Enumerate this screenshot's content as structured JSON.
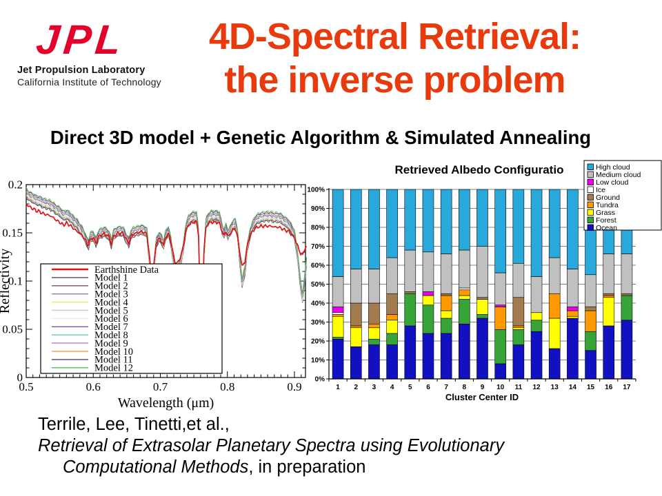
{
  "logo": {
    "acronym": "JPL",
    "name": "Jet Propulsion Laboratory",
    "institution": "California Institute of Technology",
    "brand_color": "#E4002B"
  },
  "title": {
    "line1": "4D-Spectral Retrieval:",
    "line2": "the inverse problem",
    "color": "#E93A0E"
  },
  "subtitle": "Direct 3D model + Genetic Algorithm & Simulated Annealing",
  "citation": {
    "line1": "Terrile, Lee, Tinetti,et al.,",
    "line2_italic": "Retrieval of Extrasolar Planetary Spectra using Evolutionary",
    "line3_italic": "Computational Methods",
    "line3_regular": ", in preparation"
  },
  "chart_data": [
    {
      "type": "line",
      "title": "",
      "xlabel": "Wavelength (μm)",
      "ylabel": "Reflectivity",
      "xlim": [
        0.5,
        0.918
      ],
      "ylim": [
        0,
        0.2
      ],
      "xticks": [
        0.5,
        0.6,
        0.7,
        0.8,
        0.9
      ],
      "yticks": [
        0,
        0.05,
        0.1,
        0.15,
        0.2
      ],
      "ytick_labels": [
        "0",
        "0.05",
        "0.1",
        "0.15",
        "0.2"
      ],
      "grid": false,
      "legend_position": "middle-left",
      "earthshine": {
        "name": "Earthshine Data",
        "color": "#E01010",
        "points": [
          [
            0.5,
            0.18
          ],
          [
            0.505,
            0.177
          ],
          [
            0.51,
            0.175
          ],
          [
            0.515,
            0.173
          ],
          [
            0.52,
            0.172
          ],
          [
            0.525,
            0.17
          ],
          [
            0.53,
            0.169
          ],
          [
            0.535,
            0.168
          ],
          [
            0.54,
            0.166
          ],
          [
            0.545,
            0.163
          ],
          [
            0.55,
            0.161
          ],
          [
            0.555,
            0.158
          ],
          [
            0.56,
            0.16
          ],
          [
            0.565,
            0.158
          ],
          [
            0.57,
            0.155
          ],
          [
            0.575,
            0.152
          ],
          [
            0.58,
            0.149
          ],
          [
            0.585,
            0.146
          ],
          [
            0.59,
            0.14
          ],
          [
            0.593,
            0.137
          ],
          [
            0.596,
            0.144
          ],
          [
            0.6,
            0.145
          ],
          [
            0.604,
            0.139
          ],
          [
            0.608,
            0.146
          ],
          [
            0.612,
            0.148
          ],
          [
            0.616,
            0.149
          ],
          [
            0.62,
            0.148
          ],
          [
            0.624,
            0.145
          ],
          [
            0.627,
            0.138
          ],
          [
            0.63,
            0.146
          ],
          [
            0.635,
            0.149
          ],
          [
            0.64,
            0.15
          ],
          [
            0.645,
            0.149
          ],
          [
            0.65,
            0.142
          ],
          [
            0.653,
            0.139
          ],
          [
            0.656,
            0.146
          ],
          [
            0.66,
            0.149
          ],
          [
            0.665,
            0.15
          ],
          [
            0.67,
            0.151
          ],
          [
            0.675,
            0.151
          ],
          [
            0.68,
            0.148
          ],
          [
            0.684,
            0.125
          ],
          [
            0.687,
            0.1
          ],
          [
            0.69,
            0.115
          ],
          [
            0.694,
            0.14
          ],
          [
            0.698,
            0.144
          ],
          [
            0.702,
            0.141
          ],
          [
            0.705,
            0.137
          ],
          [
            0.708,
            0.146
          ],
          [
            0.712,
            0.149
          ],
          [
            0.716,
            0.14
          ],
          [
            0.72,
            0.125
          ],
          [
            0.723,
            0.118
          ],
          [
            0.727,
            0.12
          ],
          [
            0.73,
            0.125
          ],
          [
            0.734,
            0.135
          ],
          [
            0.738,
            0.152
          ],
          [
            0.742,
            0.158
          ],
          [
            0.746,
            0.16
          ],
          [
            0.75,
            0.161
          ],
          [
            0.754,
            0.161
          ],
          [
            0.757,
            0.148
          ],
          [
            0.759,
            0.09
          ],
          [
            0.761,
            0.035
          ],
          [
            0.763,
            0.07
          ],
          [
            0.765,
            0.13
          ],
          [
            0.768,
            0.155
          ],
          [
            0.772,
            0.16
          ],
          [
            0.776,
            0.161
          ],
          [
            0.78,
            0.161
          ],
          [
            0.784,
            0.161
          ],
          [
            0.788,
            0.16
          ],
          [
            0.792,
            0.152
          ],
          [
            0.795,
            0.147
          ],
          [
            0.798,
            0.152
          ],
          [
            0.801,
            0.146
          ],
          [
            0.804,
            0.149
          ],
          [
            0.808,
            0.153
          ],
          [
            0.812,
            0.154
          ],
          [
            0.815,
            0.147
          ],
          [
            0.818,
            0.132
          ],
          [
            0.822,
            0.115
          ],
          [
            0.826,
            0.12
          ],
          [
            0.83,
            0.138
          ],
          [
            0.834,
            0.148
          ],
          [
            0.838,
            0.152
          ],
          [
            0.842,
            0.155
          ],
          [
            0.846,
            0.156
          ],
          [
            0.85,
            0.157
          ],
          [
            0.855,
            0.157
          ],
          [
            0.86,
            0.157
          ],
          [
            0.865,
            0.157
          ],
          [
            0.87,
            0.156
          ],
          [
            0.875,
            0.156
          ],
          [
            0.88,
            0.155
          ],
          [
            0.885,
            0.153
          ],
          [
            0.89,
            0.152
          ],
          [
            0.895,
            0.149
          ],
          [
            0.9,
            0.145
          ],
          [
            0.904,
            0.138
          ],
          [
            0.908,
            0.13
          ],
          [
            0.912,
            0.127
          ],
          [
            0.915,
            0.132
          ],
          [
            0.917,
            0.135
          ],
          [
            0.918,
            0.136
          ]
        ]
      },
      "models": {
        "names": [
          "Model 1",
          "Model 2",
          "Model 3",
          "Model 4",
          "Model 5",
          "Model 6",
          "Model 7",
          "Model 8",
          "Model 9",
          "Model 10",
          "Model 11",
          "Model 12"
        ],
        "colors": [
          "#4D4D4D",
          "#7A5252",
          "#7585B5",
          "#E8E870",
          "#CCCCCC",
          "#EFEADA",
          "#8055A5",
          "#62C9BE",
          "#BE78CF",
          "#F2A45C",
          "#3C4490",
          "#55BE55"
        ],
        "envelope_points": [
          [
            0.5,
            0.191
          ],
          [
            0.505,
            0.188
          ],
          [
            0.51,
            0.186
          ],
          [
            0.515,
            0.184
          ],
          [
            0.52,
            0.183
          ],
          [
            0.525,
            0.181
          ],
          [
            0.53,
            0.18
          ],
          [
            0.535,
            0.179
          ],
          [
            0.54,
            0.177
          ],
          [
            0.545,
            0.174
          ],
          [
            0.55,
            0.172
          ],
          [
            0.555,
            0.168
          ],
          [
            0.56,
            0.169
          ],
          [
            0.565,
            0.167
          ],
          [
            0.57,
            0.163
          ],
          [
            0.575,
            0.16
          ],
          [
            0.58,
            0.155
          ],
          [
            0.585,
            0.15
          ],
          [
            0.59,
            0.141
          ],
          [
            0.593,
            0.138
          ],
          [
            0.596,
            0.146
          ],
          [
            0.6,
            0.147
          ],
          [
            0.604,
            0.14
          ],
          [
            0.608,
            0.148
          ],
          [
            0.612,
            0.15
          ],
          [
            0.616,
            0.151
          ],
          [
            0.62,
            0.15
          ],
          [
            0.624,
            0.146
          ],
          [
            0.627,
            0.139
          ],
          [
            0.63,
            0.148
          ],
          [
            0.635,
            0.151
          ],
          [
            0.64,
            0.152
          ],
          [
            0.645,
            0.151
          ],
          [
            0.65,
            0.143
          ],
          [
            0.653,
            0.14
          ],
          [
            0.656,
            0.148
          ],
          [
            0.66,
            0.151
          ],
          [
            0.665,
            0.152
          ],
          [
            0.67,
            0.153
          ],
          [
            0.675,
            0.153
          ],
          [
            0.68,
            0.15
          ],
          [
            0.684,
            0.12
          ],
          [
            0.687,
            0.088
          ],
          [
            0.69,
            0.11
          ],
          [
            0.694,
            0.14
          ],
          [
            0.698,
            0.146
          ],
          [
            0.702,
            0.143
          ],
          [
            0.705,
            0.138
          ],
          [
            0.708,
            0.148
          ],
          [
            0.712,
            0.152
          ],
          [
            0.716,
            0.14
          ],
          [
            0.72,
            0.118
          ],
          [
            0.723,
            0.108
          ],
          [
            0.727,
            0.113
          ],
          [
            0.73,
            0.12
          ],
          [
            0.734,
            0.133
          ],
          [
            0.738,
            0.155
          ],
          [
            0.742,
            0.163
          ],
          [
            0.746,
            0.166
          ],
          [
            0.75,
            0.167
          ],
          [
            0.754,
            0.167
          ],
          [
            0.757,
            0.15
          ],
          [
            0.759,
            0.08
          ],
          [
            0.761,
            0.022
          ],
          [
            0.763,
            0.06
          ],
          [
            0.765,
            0.13
          ],
          [
            0.768,
            0.16
          ],
          [
            0.772,
            0.166
          ],
          [
            0.776,
            0.168
          ],
          [
            0.78,
            0.168
          ],
          [
            0.784,
            0.168
          ],
          [
            0.788,
            0.167
          ],
          [
            0.792,
            0.155
          ],
          [
            0.795,
            0.149
          ],
          [
            0.798,
            0.155
          ],
          [
            0.801,
            0.148
          ],
          [
            0.804,
            0.152
          ],
          [
            0.808,
            0.158
          ],
          [
            0.812,
            0.16
          ],
          [
            0.815,
            0.15
          ],
          [
            0.818,
            0.125
          ],
          [
            0.822,
            0.098
          ],
          [
            0.826,
            0.11
          ],
          [
            0.83,
            0.135
          ],
          [
            0.834,
            0.15
          ],
          [
            0.838,
            0.158
          ],
          [
            0.842,
            0.163
          ],
          [
            0.846,
            0.165
          ],
          [
            0.85,
            0.166
          ],
          [
            0.855,
            0.167
          ],
          [
            0.86,
            0.167
          ],
          [
            0.865,
            0.167
          ],
          [
            0.87,
            0.166
          ],
          [
            0.875,
            0.166
          ],
          [
            0.88,
            0.165
          ],
          [
            0.885,
            0.162
          ],
          [
            0.89,
            0.16
          ],
          [
            0.895,
            0.155
          ],
          [
            0.9,
            0.148
          ],
          [
            0.904,
            0.13
          ],
          [
            0.908,
            0.103
          ],
          [
            0.912,
            0.082
          ],
          [
            0.915,
            0.1
          ],
          [
            0.917,
            0.115
          ],
          [
            0.918,
            0.12
          ]
        ]
      }
    },
    {
      "type": "bar",
      "subtype": "stacked-100pct",
      "title": "Retrieved Albedo Configuratio",
      "xlabel": "Cluster Center ID",
      "ylabel": "",
      "categories": [
        "1",
        "2",
        "3",
        "4",
        "5",
        "6",
        "7",
        "8",
        "9",
        "10",
        "11",
        "12",
        "13",
        "14",
        "15",
        "16",
        "17"
      ],
      "ytick_labels": [
        "0%",
        "10%",
        "20%",
        "30%",
        "40%",
        "50%",
        "60%",
        "70%",
        "80%",
        "90%",
        "100%"
      ],
      "ylim": [
        0,
        100
      ],
      "grid": true,
      "legend_position": "top-right",
      "stack_order_bottom_to_top": [
        "Ocean",
        "Forest",
        "Grass",
        "Tundra",
        "Ground",
        "Ice",
        "Low cloud",
        "Medium cloud",
        "High cloud"
      ],
      "series": [
        {
          "name": "High cloud",
          "color": "#29A8DC",
          "values": [
            46,
            42,
            42,
            36,
            32,
            33,
            34,
            32,
            30,
            44,
            39,
            46,
            36,
            42,
            45,
            34,
            34
          ]
        },
        {
          "name": "Medium cloud",
          "color": "#C0C0C0",
          "values": [
            16,
            18,
            18,
            19,
            22,
            21,
            21,
            20,
            27,
            17,
            18,
            19,
            19,
            20,
            17,
            21,
            21
          ]
        },
        {
          "name": "Low cloud",
          "color": "#EE00EE",
          "values": [
            3,
            0,
            0,
            0,
            0,
            2,
            0,
            0,
            0,
            1,
            0,
            0,
            0,
            2,
            0,
            0,
            0
          ]
        },
        {
          "name": "Ice",
          "color": "#FFFFFF",
          "values": [
            1,
            0,
            0,
            0,
            0,
            0,
            0,
            1,
            0,
            0,
            0,
            0,
            0,
            0,
            0,
            0,
            0
          ]
        },
        {
          "name": "Ground",
          "color": "#A27C4F",
          "values": [
            0,
            12,
            11,
            11,
            1,
            0,
            1,
            0,
            1,
            0,
            15,
            0,
            0,
            0,
            2,
            1,
            1
          ]
        },
        {
          "name": "Tundra",
          "color": "#FF9900",
          "values": [
            1,
            1,
            2,
            3,
            0,
            0,
            8,
            3,
            0,
            12,
            1,
            0,
            13,
            3,
            11,
            1,
            0
          ]
        },
        {
          "name": "Grass",
          "color": "#FFFF00",
          "values": [
            11,
            10,
            6,
            7,
            0,
            5,
            4,
            2,
            8,
            0,
            1,
            4,
            16,
            1,
            0,
            15,
            0
          ]
        },
        {
          "name": "Forest",
          "color": "#36A436",
          "values": [
            1,
            0,
            3,
            6,
            17,
            15,
            8,
            13,
            2,
            18,
            8,
            6,
            0,
            0,
            10,
            0,
            13
          ]
        },
        {
          "name": "Ocean",
          "color": "#1111C2",
          "values": [
            21,
            17,
            18,
            18,
            28,
            24,
            24,
            29,
            32,
            8,
            18,
            25,
            16,
            32,
            15,
            28,
            31
          ]
        }
      ]
    }
  ]
}
